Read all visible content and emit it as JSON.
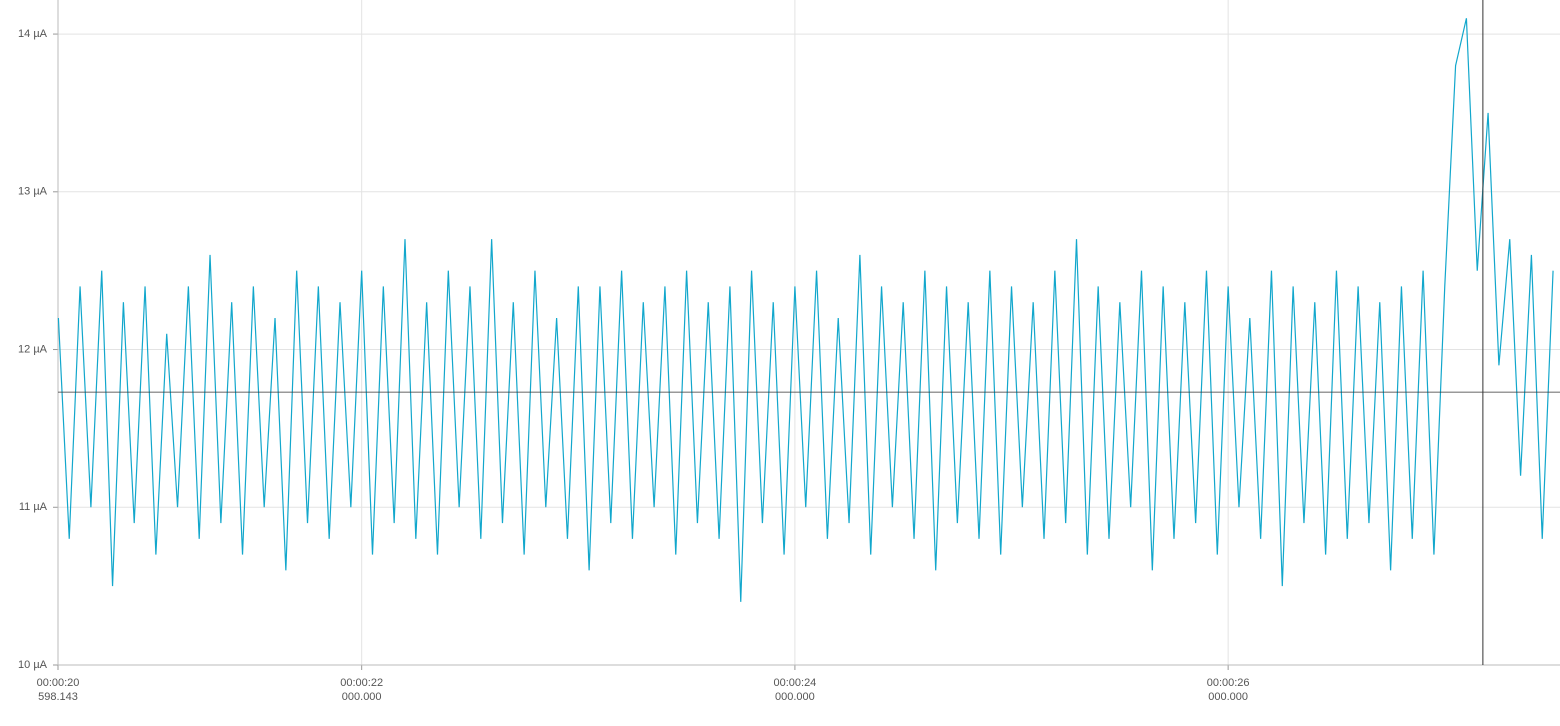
{
  "chart_data": {
    "type": "line",
    "xlim": [
      20.598143,
      27.532
    ],
    "ylim": [
      10,
      14.216
    ],
    "xticks": [
      {
        "value": 20.598143,
        "label": [
          "00:00:20",
          "598.143"
        ]
      },
      {
        "value": 22,
        "label": [
          "00:00:22",
          "000.000"
        ]
      },
      {
        "value": 24,
        "label": [
          "00:00:24",
          "000.000"
        ]
      },
      {
        "value": 26,
        "label": [
          "00:00:26",
          "000.000"
        ]
      }
    ],
    "yticks": [
      {
        "value": 10,
        "label": "10 µA"
      },
      {
        "value": 11,
        "label": "11 µA"
      },
      {
        "value": 12,
        "label": "12 µA"
      },
      {
        "value": 13,
        "label": "13 µA"
      },
      {
        "value": 14,
        "label": "14 µA"
      }
    ],
    "grid": true,
    "cursor": {
      "x": 27.176,
      "y": 11.73
    },
    "x": [
      20.6,
      20.65,
      20.7,
      20.75,
      20.8,
      20.85,
      20.9,
      20.95,
      21.0,
      21.05,
      21.1,
      21.15,
      21.2,
      21.25,
      21.3,
      21.35,
      21.4,
      21.45,
      21.5,
      21.55,
      21.6,
      21.65,
      21.7,
      21.75,
      21.8,
      21.85,
      21.9,
      21.95,
      22.0,
      22.05,
      22.1,
      22.15,
      22.2,
      22.25,
      22.3,
      22.35,
      22.4,
      22.45,
      22.5,
      22.55,
      22.6,
      22.65,
      22.7,
      22.75,
      22.8,
      22.85,
      22.9,
      22.95,
      23.0,
      23.05,
      23.1,
      23.15,
      23.2,
      23.25,
      23.3,
      23.35,
      23.4,
      23.45,
      23.5,
      23.55,
      23.6,
      23.65,
      23.7,
      23.75,
      23.8,
      23.85,
      23.9,
      23.95,
      24.0,
      24.05,
      24.1,
      24.15,
      24.2,
      24.25,
      24.3,
      24.35,
      24.4,
      24.45,
      24.5,
      24.55,
      24.6,
      24.65,
      24.7,
      24.75,
      24.8,
      24.85,
      24.9,
      24.95,
      25.0,
      25.05,
      25.1,
      25.15,
      25.2,
      25.25,
      25.3,
      25.35,
      25.4,
      25.45,
      25.5,
      25.55,
      25.6,
      25.65,
      25.7,
      25.75,
      25.8,
      25.85,
      25.9,
      25.95,
      26.0,
      26.05,
      26.1,
      26.15,
      26.2,
      26.25,
      26.3,
      26.35,
      26.4,
      26.45,
      26.5,
      26.55,
      26.6,
      26.65,
      26.7,
      26.75,
      26.8,
      26.85,
      26.9,
      26.95,
      27.0,
      27.05,
      27.1,
      27.15,
      27.2,
      27.25,
      27.3,
      27.35,
      27.4,
      27.45,
      27.5
    ],
    "series": [
      {
        "color": "#12a7cc",
        "values": [
          12.2,
          10.8,
          12.4,
          11.0,
          12.5,
          10.5,
          12.3,
          10.9,
          12.4,
          10.7,
          12.1,
          11.0,
          12.4,
          10.8,
          12.6,
          10.9,
          12.3,
          10.7,
          12.4,
          11.0,
          12.2,
          10.6,
          12.5,
          10.9,
          12.4,
          10.8,
          12.3,
          11.0,
          12.5,
          10.7,
          12.4,
          10.9,
          12.7,
          10.8,
          12.3,
          10.7,
          12.5,
          11.0,
          12.4,
          10.8,
          12.7,
          10.9,
          12.3,
          10.7,
          12.5,
          11.0,
          12.2,
          10.8,
          12.4,
          10.6,
          12.4,
          10.9,
          12.5,
          10.8,
          12.3,
          11.0,
          12.4,
          10.7,
          12.5,
          10.9,
          12.3,
          10.8,
          12.4,
          10.4,
          12.5,
          10.9,
          12.3,
          10.7,
          12.4,
          11.0,
          12.5,
          10.8,
          12.2,
          10.9,
          12.6,
          10.7,
          12.4,
          11.0,
          12.3,
          10.8,
          12.5,
          10.6,
          12.4,
          10.9,
          12.3,
          10.8,
          12.5,
          10.7,
          12.4,
          11.0,
          12.3,
          10.8,
          12.5,
          10.9,
          12.7,
          10.7,
          12.4,
          10.8,
          12.3,
          11.0,
          12.5,
          10.6,
          12.4,
          10.8,
          12.3,
          10.9,
          12.5,
          10.7,
          12.4,
          11.0,
          12.2,
          10.8,
          12.5,
          10.5,
          12.4,
          10.9,
          12.3,
          10.7,
          12.5,
          10.8,
          12.4,
          10.9,
          12.3,
          10.6,
          12.4,
          10.8,
          12.5,
          10.7,
          12.4,
          13.8,
          14.1,
          12.5,
          13.5,
          11.9,
          12.7,
          11.2,
          12.6,
          10.8,
          12.5
        ]
      }
    ]
  }
}
